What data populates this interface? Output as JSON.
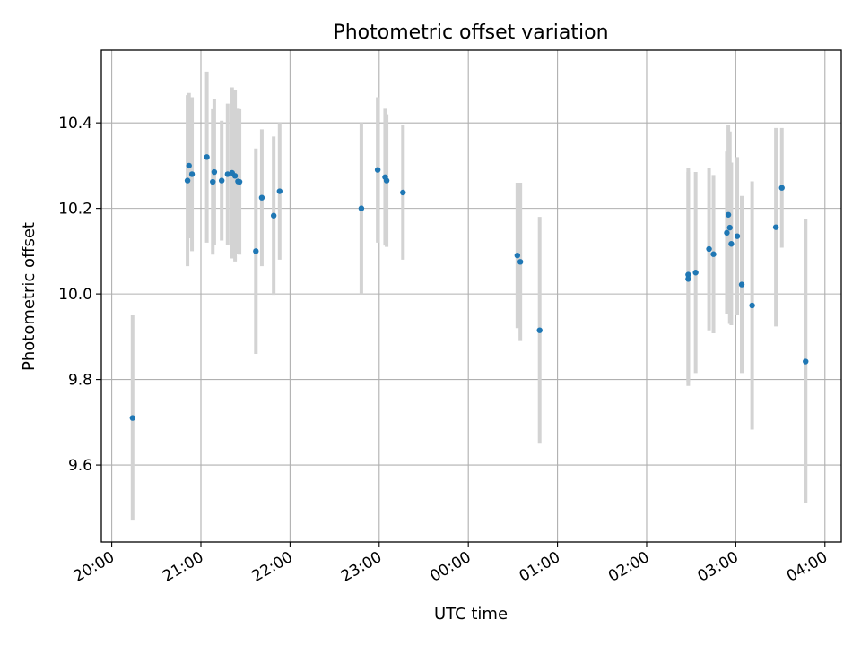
{
  "chart_data": {
    "type": "scatter",
    "title": "Photometric offset variation",
    "xlabel": "UTC time",
    "ylabel": "Photometric offset",
    "x_is_time": true,
    "xlim": [
      "19:53",
      "04:11"
    ],
    "ylim": [
      9.42,
      10.57
    ],
    "xticks": [
      "20:00",
      "21:00",
      "22:00",
      "23:00",
      "00:00",
      "01:00",
      "02:00",
      "03:00",
      "04:00"
    ],
    "yticks": [
      9.6,
      9.8,
      10.0,
      10.2,
      10.4
    ],
    "grid": true,
    "colors": {
      "marker": "#1f77b4",
      "errorbar": "#d3d3d3",
      "grid": "#b0b0b0"
    },
    "points": [
      {
        "t": "20:14",
        "y": 9.71,
        "err": 0.24
      },
      {
        "t": "20:51",
        "y": 10.265,
        "err": 0.2
      },
      {
        "t": "20:52",
        "y": 10.3,
        "err": 0.17
      },
      {
        "t": "20:54",
        "y": 10.28,
        "err": 0.18
      },
      {
        "t": "21:04",
        "y": 10.32,
        "err": 0.2
      },
      {
        "t": "21:08",
        "y": 10.262,
        "err": 0.17
      },
      {
        "t": "21:09",
        "y": 10.285,
        "err": 0.17
      },
      {
        "t": "21:14",
        "y": 10.265,
        "err": 0.14
      },
      {
        "t": "21:18",
        "y": 10.28,
        "err": 0.165
      },
      {
        "t": "21:21",
        "y": 10.283,
        "err": 0.2
      },
      {
        "t": "21:23",
        "y": 10.276,
        "err": 0.2
      },
      {
        "t": "21:25",
        "y": 10.263,
        "err": 0.17
      },
      {
        "t": "21:26",
        "y": 10.262,
        "err": 0.17
      },
      {
        "t": "21:37",
        "y": 10.1,
        "err": 0.24
      },
      {
        "t": "21:41",
        "y": 10.225,
        "err": 0.16
      },
      {
        "t": "21:49",
        "y": 10.183,
        "err": 0.185
      },
      {
        "t": "21:53",
        "y": 10.24,
        "err": 0.16
      },
      {
        "t": "22:48",
        "y": 10.2,
        "err": 0.2
      },
      {
        "t": "22:59",
        "y": 10.29,
        "err": 0.17
      },
      {
        "t": "23:04",
        "y": 10.273,
        "err": 0.16
      },
      {
        "t": "23:05",
        "y": 10.265,
        "err": 0.155
      },
      {
        "t": "23:16",
        "y": 10.237,
        "err": 0.157
      },
      {
        "t": "00:33",
        "y": 10.09,
        "err": 0.17
      },
      {
        "t": "00:35",
        "y": 10.075,
        "err": 0.185
      },
      {
        "t": "00:48",
        "y": 9.915,
        "err": 0.265
      },
      {
        "t": "02:28",
        "y": 10.045,
        "err": 0.25
      },
      {
        "t": "02:28",
        "y": 10.035,
        "err": 0.25
      },
      {
        "t": "02:33",
        "y": 10.05,
        "err": 0.235
      },
      {
        "t": "02:42",
        "y": 10.105,
        "err": 0.19
      },
      {
        "t": "02:45",
        "y": 10.093,
        "err": 0.185
      },
      {
        "t": "02:54",
        "y": 10.143,
        "err": 0.19
      },
      {
        "t": "02:55",
        "y": 10.185,
        "err": 0.21
      },
      {
        "t": "02:56",
        "y": 10.155,
        "err": 0.225
      },
      {
        "t": "02:57",
        "y": 10.117,
        "err": 0.19
      },
      {
        "t": "03:01",
        "y": 10.135,
        "err": 0.185
      },
      {
        "t": "03:04",
        "y": 10.022,
        "err": 0.207
      },
      {
        "t": "03:11",
        "y": 9.973,
        "err": 0.29
      },
      {
        "t": "03:27",
        "y": 10.156,
        "err": 0.232
      },
      {
        "t": "03:31",
        "y": 10.248,
        "err": 0.14
      },
      {
        "t": "03:47",
        "y": 9.842,
        "err": 0.332
      }
    ]
  }
}
